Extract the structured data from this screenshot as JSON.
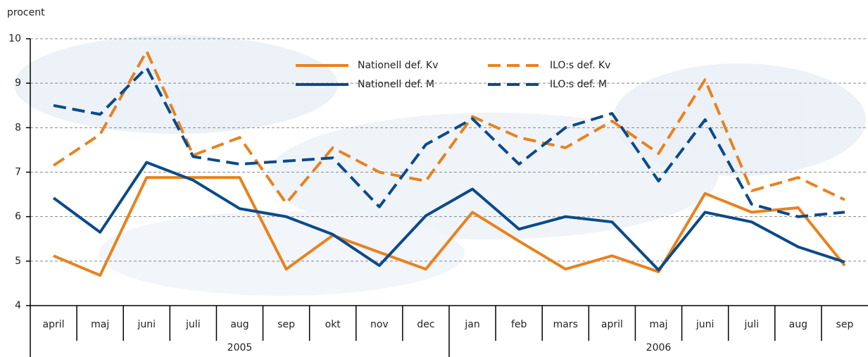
{
  "chart_data": {
    "type": "line",
    "y_axis_label": "procent",
    "ylim": [
      4,
      10
    ],
    "yticks": [
      4,
      5,
      6,
      7,
      8,
      9,
      10
    ],
    "grid": true,
    "year_groups": [
      {
        "name": "2005",
        "categories": [
          "april",
          "maj",
          "juni",
          "juli",
          "aug",
          "sep",
          "okt",
          "nov",
          "dec"
        ]
      },
      {
        "name": "2006",
        "categories": [
          "jan",
          "feb",
          "mars",
          "april",
          "maj",
          "juni",
          "juli",
          "aug",
          "sep"
        ]
      }
    ],
    "series": [
      {
        "name": "Nationell def. Kv",
        "color": "#e8821e",
        "dashed": false,
        "values": [
          5.12,
          4.68,
          6.88,
          6.88,
          6.88,
          4.82,
          5.58,
          5.2,
          4.82,
          6.1,
          5.45,
          4.82,
          5.12,
          4.76,
          6.52,
          6.1,
          6.2,
          4.9
        ]
      },
      {
        "name": "Nationell def. M",
        "color": "#0b4a8a",
        "dashed": false,
        "values": [
          6.42,
          5.65,
          7.22,
          6.82,
          6.18,
          6.0,
          5.6,
          4.9,
          6.02,
          6.62,
          5.72,
          6.0,
          5.88,
          4.8,
          6.1,
          5.88,
          5.32,
          4.98
        ]
      },
      {
        "name": "ILO:s def. Kv",
        "color": "#e8821e",
        "dashed": true,
        "values": [
          7.15,
          7.85,
          9.72,
          7.38,
          7.78,
          6.3,
          7.55,
          7.0,
          6.8,
          8.25,
          7.78,
          7.55,
          8.15,
          7.42,
          9.08,
          6.58,
          6.88,
          6.38
        ]
      },
      {
        "name": "ILO:s def. M",
        "color": "#0b4a8a",
        "dashed": true,
        "values": [
          8.5,
          8.3,
          9.35,
          7.35,
          7.18,
          7.25,
          7.32,
          6.22,
          7.62,
          8.2,
          7.18,
          8.0,
          8.32,
          6.8,
          8.18,
          6.28,
          6.0,
          6.1
        ]
      }
    ]
  }
}
